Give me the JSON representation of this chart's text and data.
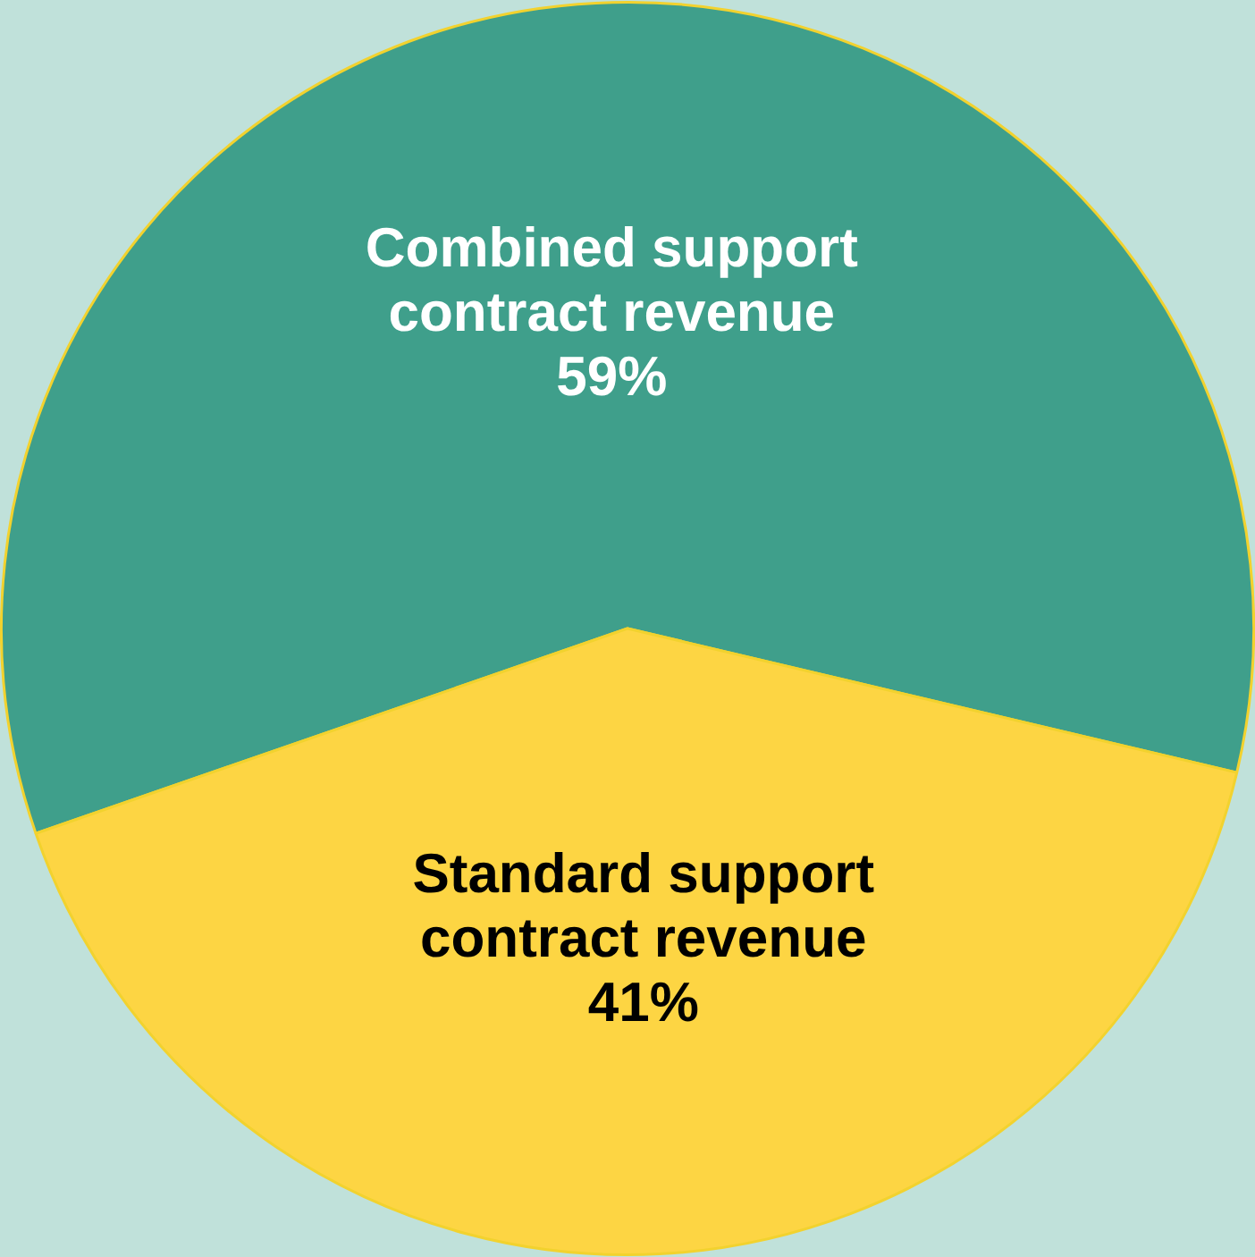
{
  "chart_data": {
    "type": "pie",
    "categories": [
      "Combined support contract revenue",
      "Standard support contract revenue"
    ],
    "values": [
      59,
      41
    ],
    "colors": [
      "#3f9f8b",
      "#fdd543"
    ],
    "value_labels": [
      "59%",
      "41%"
    ],
    "legend": false
  }
}
